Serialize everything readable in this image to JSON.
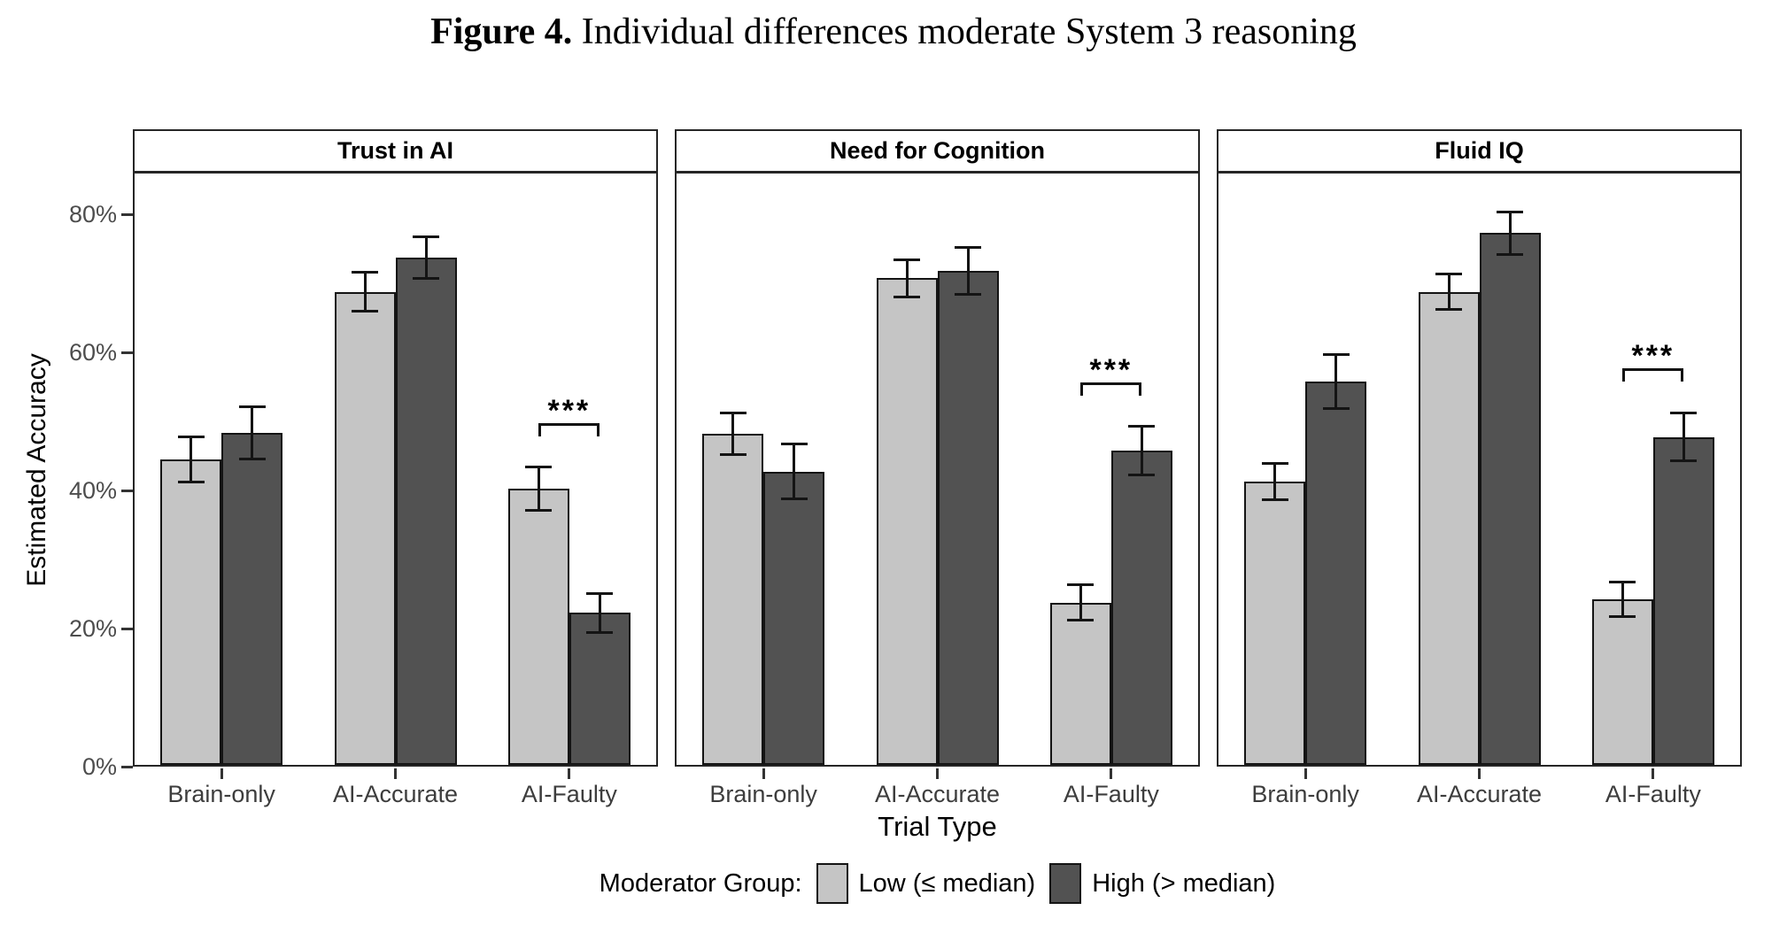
{
  "title": {
    "prefix": "Figure 4.",
    "rest": " Individual differences moderate System 3 reasoning"
  },
  "chart_data": {
    "type": "bar",
    "facetted": true,
    "categories": [
      "Brain-only",
      "AI-Accurate",
      "AI-Faulty"
    ],
    "series_names": [
      "Low (≤ median)",
      "High (> median)"
    ],
    "ylabel": "Estimated Accuracy",
    "xlabel": "Trial Type",
    "y_ticks": [
      0,
      20,
      40,
      60,
      80
    ],
    "y_tick_labels": [
      "0%",
      "20%",
      "40%",
      "60%",
      "80%"
    ],
    "ylim": [
      0,
      85.6
    ],
    "grid": false,
    "legend_position": "bottom",
    "colors": {
      "low": "#c5c5c5",
      "high": "#525252",
      "stroke": "#141414"
    },
    "legend": {
      "label": "Moderator Group:",
      "items": [
        {
          "name": "Low (≤ median)",
          "color": "#c5c5c5"
        },
        {
          "name": "High (> median)",
          "color": "#525252"
        }
      ]
    },
    "facets": [
      {
        "label": "Trust in AI",
        "series": [
          {
            "name": "Low (≤ median)",
            "values": [
              44.2,
              68.5,
              40.0
            ],
            "errors": [
              3.3,
              2.8,
              3.2
            ]
          },
          {
            "name": "High (> median)",
            "values": [
              48.1,
              73.5,
              22.0
            ],
            "errors": [
              3.8,
              3.0,
              2.8
            ]
          }
        ],
        "significance": {
          "category": "AI-Faulty",
          "category_index": 2,
          "label": "***",
          "bracket_y": 47.6
        }
      },
      {
        "label": "Need for Cognition",
        "series": [
          {
            "name": "Low (≤ median)",
            "values": [
              48.0,
              70.5,
              23.5
            ],
            "errors": [
              3.0,
              2.7,
              2.6
            ]
          },
          {
            "name": "High (> median)",
            "values": [
              42.5,
              71.5,
              45.5
            ],
            "errors": [
              4.0,
              3.4,
              3.5
            ]
          }
        ],
        "significance": {
          "category": "AI-Faulty",
          "category_index": 2,
          "label": "***",
          "bracket_y": 53.5
        }
      },
      {
        "label": "Fluid IQ",
        "series": [
          {
            "name": "Low (≤ median)",
            "values": [
              41.0,
              68.5,
              24.0
            ],
            "errors": [
              2.6,
              2.6,
              2.5
            ]
          },
          {
            "name": "High (> median)",
            "values": [
              55.5,
              77.0,
              47.5
            ],
            "errors": [
              3.9,
              3.1,
              3.4
            ]
          }
        ],
        "significance": {
          "category": "AI-Faulty",
          "category_index": 2,
          "label": "***",
          "bracket_y": 55.5
        }
      }
    ]
  }
}
